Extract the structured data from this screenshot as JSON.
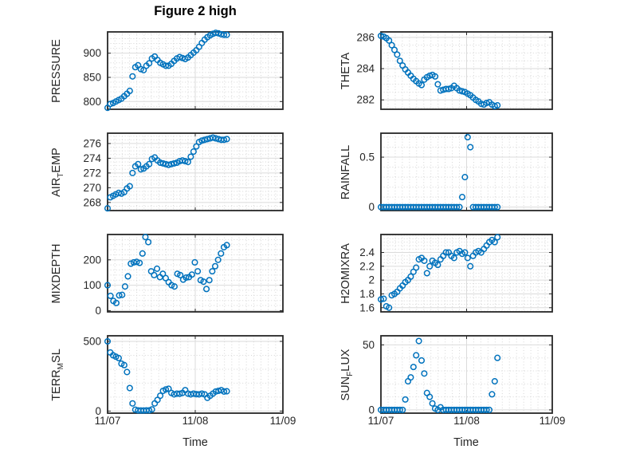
{
  "title": "Figure 2 high",
  "xlabel": "Time",
  "x_tick_labels": [
    "11/07",
    "11/08",
    "11/09"
  ],
  "colors": {
    "marker": "#0072BD",
    "axis": "#262626",
    "grid_major": "#dbdbdb",
    "grid_minor": "#d6d6d6",
    "background": "#ffffff"
  },
  "chart_data": [
    {
      "id": "pressure",
      "type": "scatter",
      "ylabel": [
        {
          "t": "PRESSURE"
        }
      ],
      "yticks": [
        800,
        850,
        900
      ],
      "ytick_labels": [
        "800",
        "850",
        "900"
      ],
      "ylim": [
        784,
        944
      ],
      "minor_div": 5,
      "xlim": [
        0,
        2
      ],
      "x_end": 1.36,
      "values": [
        787,
        795,
        797,
        800,
        803,
        806,
        811,
        816,
        822,
        852,
        871,
        875,
        867,
        865,
        874,
        879,
        889,
        893,
        886,
        880,
        877,
        874,
        874,
        878,
        884,
        889,
        892,
        890,
        888,
        891,
        896,
        901,
        906,
        913,
        921,
        928,
        933,
        937,
        940,
        942,
        941,
        939,
        938,
        938
      ]
    },
    {
      "id": "theta",
      "type": "scatter",
      "ylabel": [
        {
          "t": "THETA"
        }
      ],
      "yticks": [
        282,
        284,
        286
      ],
      "ytick_labels": [
        "282",
        "284",
        "286"
      ],
      "ylim": [
        281.4,
        286.35
      ],
      "minor_div": 4,
      "xlim": [
        0,
        2
      ],
      "x_end": 1.36,
      "values": [
        286.1,
        286.05,
        285.95,
        285.8,
        285.5,
        285.2,
        284.9,
        284.5,
        284.2,
        283.95,
        283.75,
        283.55,
        283.35,
        283.2,
        283.05,
        282.95,
        283.3,
        283.45,
        283.55,
        283.6,
        283.5,
        283.0,
        282.6,
        282.65,
        282.7,
        282.7,
        282.75,
        282.9,
        282.75,
        282.6,
        282.55,
        282.5,
        282.4,
        282.3,
        282.15,
        282.0,
        281.9,
        281.75,
        281.7,
        281.8,
        281.85,
        281.7,
        281.6,
        281.65
      ]
    },
    {
      "id": "airtemp",
      "type": "scatter",
      "ylabel": [
        {
          "t": "AIR"
        },
        {
          "t": "T",
          "sub": true
        },
        {
          "t": "EMP"
        }
      ],
      "yticks": [
        268,
        270,
        272,
        274,
        276
      ],
      "ytick_labels": [
        "268",
        "270",
        "272",
        "274",
        "276"
      ],
      "ylim": [
        266.9,
        277.4
      ],
      "minor_div": 4,
      "xlim": [
        0,
        2
      ],
      "x_end": 1.36,
      "values": [
        267.2,
        268.7,
        268.9,
        269.1,
        269.3,
        269.2,
        269.4,
        269.9,
        270.2,
        272.0,
        272.9,
        273.2,
        272.5,
        272.6,
        272.9,
        273.2,
        273.9,
        274.1,
        273.7,
        273.4,
        273.3,
        273.2,
        273.1,
        273.2,
        273.3,
        273.4,
        273.6,
        273.7,
        273.6,
        273.5,
        274.2,
        274.9,
        275.6,
        276.2,
        276.4,
        276.5,
        276.6,
        276.7,
        276.8,
        276.7,
        276.6,
        276.5,
        276.5,
        276.6
      ]
    },
    {
      "id": "rainfall",
      "type": "scatter",
      "ylabel": [
        {
          "t": "RAINFALL"
        }
      ],
      "yticks": [
        0,
        0.5
      ],
      "ytick_labels": [
        "0",
        "0.5"
      ],
      "ylim": [
        -0.035,
        0.74
      ],
      "minor_div": 5,
      "xlim": [
        0,
        2
      ],
      "x_end": 1.36,
      "values": [
        0,
        0,
        0,
        0,
        0,
        0,
        0,
        0,
        0,
        0,
        0,
        0,
        0,
        0,
        0,
        0,
        0,
        0,
        0,
        0,
        0,
        0,
        0,
        0,
        0,
        0,
        0,
        0,
        0,
        0,
        0.1,
        0.3,
        0.7,
        0.6,
        0,
        0,
        0,
        0,
        0,
        0,
        0,
        0,
        0,
        0
      ]
    },
    {
      "id": "mixdepth",
      "type": "scatter",
      "ylabel": [
        {
          "t": "MIXDEPTH"
        }
      ],
      "yticks": [
        0,
        100,
        200
      ],
      "ytick_labels": [
        "0",
        "100",
        "200"
      ],
      "ylim": [
        -5,
        300
      ],
      "minor_div": 5,
      "xlim": [
        0,
        2
      ],
      "x_end": 1.36,
      "values": [
        100,
        58,
        38,
        30,
        60,
        62,
        95,
        135,
        185,
        190,
        192,
        188,
        225,
        290,
        270,
        155,
        140,
        165,
        132,
        145,
        128,
        112,
        100,
        95,
        145,
        140,
        122,
        130,
        132,
        142,
        190,
        155,
        120,
        114,
        85,
        120,
        155,
        175,
        200,
        225,
        250,
        258
      ]
    },
    {
      "id": "h2omixra",
      "type": "scatter",
      "ylabel": [
        {
          "t": "H2OMIXRA"
        }
      ],
      "yticks": [
        1.6,
        1.8,
        2,
        2.2,
        2.4
      ],
      "ytick_labels": [
        "1.6",
        "1.8",
        "2",
        "2.2",
        "2.4"
      ],
      "ylim": [
        1.54,
        2.66
      ],
      "minor_div": 4,
      "xlim": [
        0,
        2
      ],
      "x_end": 1.36,
      "values": [
        1.72,
        1.73,
        1.62,
        1.6,
        1.78,
        1.8,
        1.83,
        1.88,
        1.92,
        1.97,
        2.0,
        2.05,
        2.12,
        2.18,
        2.3,
        2.32,
        2.28,
        2.1,
        2.2,
        2.28,
        2.25,
        2.22,
        2.3,
        2.35,
        2.4,
        2.4,
        2.35,
        2.32,
        2.4,
        2.42,
        2.38,
        2.4,
        2.32,
        2.2,
        2.35,
        2.4,
        2.42,
        2.4,
        2.45,
        2.5,
        2.55,
        2.58,
        2.55,
        2.62
      ]
    },
    {
      "id": "terr-msl",
      "type": "scatter",
      "ylabel": [
        {
          "t": "TERR"
        },
        {
          "t": "M",
          "sub": true
        },
        {
          "t": "SL"
        }
      ],
      "yticks": [
        0,
        500
      ],
      "ytick_labels": [
        "0",
        "500"
      ],
      "ylim": [
        -15,
        540
      ],
      "minor_div": 5,
      "xlim": [
        0,
        2
      ],
      "x_end": 1.36,
      "values": [
        500,
        420,
        400,
        390,
        380,
        340,
        330,
        280,
        165,
        55,
        10,
        5,
        4,
        4,
        5,
        5,
        12,
        55,
        80,
        110,
        145,
        155,
        160,
        130,
        120,
        125,
        124,
        130,
        150,
        125,
        120,
        125,
        121,
        120,
        125,
        120,
        95,
        110,
        125,
        140,
        145,
        150,
        140,
        142
      ]
    },
    {
      "id": "sun-flux",
      "type": "scatter",
      "ylabel": [
        {
          "t": "SUN"
        },
        {
          "t": "F",
          "sub": true
        },
        {
          "t": "LUX"
        }
      ],
      "yticks": [
        0,
        50
      ],
      "ytick_labels": [
        "0",
        "50"
      ],
      "ylim": [
        -2.5,
        57
      ],
      "minor_div": 5,
      "xlim": [
        0,
        2
      ],
      "x_end": 1.36,
      "values": [
        0,
        0,
        0,
        0,
        0,
        0,
        0,
        0,
        0,
        8,
        22,
        25,
        33,
        42,
        53,
        38,
        28,
        13,
        10,
        5,
        1,
        0,
        2,
        0,
        0,
        0,
        0,
        0,
        0,
        0,
        0,
        0,
        0,
        0,
        0,
        0,
        0,
        0,
        0,
        0,
        0,
        12,
        22,
        40
      ]
    }
  ]
}
